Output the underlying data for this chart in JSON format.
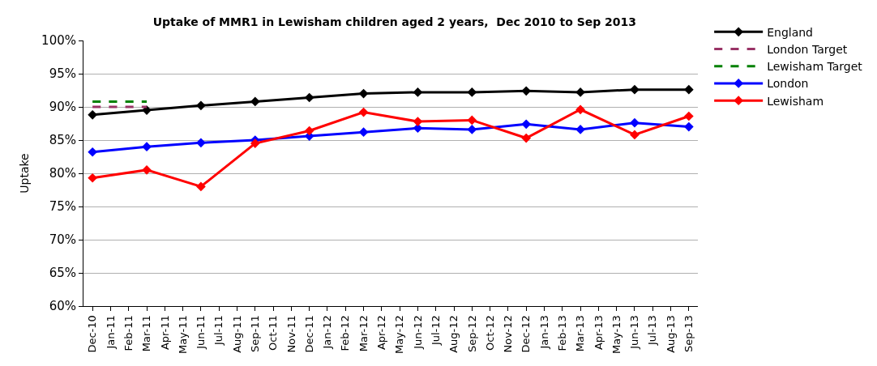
{
  "chart_data": {
    "type": "line",
    "title": "Uptake of MMR1 in Lewisham children aged 2 years,  Dec 2010 to Sep 2013",
    "ylabel": "Uptake",
    "categories": [
      "Dec-10",
      "Jan-11",
      "Feb-11",
      "Mar-11",
      "Apr-11",
      "May-11",
      "Jun-11",
      "Jul-11",
      "Aug-11",
      "Sep-11",
      "Oct-11",
      "Nov-11",
      "Dec-11",
      "Jan-12",
      "Feb-12",
      "Mar-12",
      "Apr-12",
      "May-12",
      "Jun-12",
      "Jul-12",
      "Aug-12",
      "Sep-12",
      "Oct-12",
      "Nov-12",
      "Dec-12",
      "Jan-13",
      "Feb-13",
      "Mar-13",
      "Apr-13",
      "May-13",
      "Jun-13",
      "Jul-13",
      "Aug-13",
      "Sep-13"
    ],
    "series": [
      {
        "name": "England",
        "color": "#000000",
        "marker": "diamond",
        "line_style": "solid",
        "values": [
          88.8,
          null,
          null,
          89.5,
          null,
          null,
          90.2,
          null,
          null,
          90.8,
          null,
          null,
          91.4,
          null,
          null,
          92.0,
          null,
          null,
          92.2,
          null,
          null,
          92.2,
          null,
          null,
          92.4,
          null,
          null,
          92.2,
          null,
          null,
          92.6,
          null,
          null,
          92.6
        ]
      },
      {
        "name": "London Target",
        "color": "#993366",
        "marker": "none",
        "line_style": "dashed",
        "values": [
          90,
          90,
          90,
          90,
          null,
          null,
          null,
          null,
          null,
          null,
          null,
          null,
          null,
          null,
          null,
          null,
          null,
          null,
          null,
          null,
          null,
          null,
          null,
          null,
          null,
          null,
          null,
          null,
          null,
          null,
          null,
          null,
          null,
          null
        ]
      },
      {
        "name": "Lewisham Target",
        "color": "#008000",
        "marker": "none",
        "line_style": "dashed",
        "values": [
          90.8,
          90.8,
          90.8,
          90.8,
          null,
          null,
          null,
          null,
          null,
          null,
          null,
          null,
          null,
          null,
          null,
          null,
          null,
          null,
          null,
          null,
          null,
          null,
          null,
          null,
          null,
          null,
          null,
          null,
          null,
          null,
          null,
          null,
          null,
          null
        ]
      },
      {
        "name": "London",
        "color": "#0000ff",
        "marker": "diamond",
        "line_style": "solid",
        "values": [
          83.2,
          null,
          null,
          84.0,
          null,
          null,
          84.6,
          null,
          null,
          85.0,
          null,
          null,
          85.6,
          null,
          null,
          86.2,
          null,
          null,
          86.8,
          null,
          null,
          86.6,
          null,
          null,
          87.4,
          null,
          null,
          86.6,
          null,
          null,
          87.6,
          null,
          null,
          87.0
        ]
      },
      {
        "name": "Lewisham",
        "color": "#ff0000",
        "marker": "diamond",
        "line_style": "solid",
        "values": [
          79.3,
          null,
          null,
          80.5,
          null,
          null,
          78.0,
          null,
          null,
          84.5,
          null,
          null,
          86.4,
          null,
          null,
          89.2,
          null,
          null,
          87.8,
          null,
          null,
          88.0,
          null,
          null,
          85.3,
          null,
          null,
          89.6,
          null,
          null,
          85.8,
          null,
          null,
          88.6
        ]
      }
    ],
    "ylim": [
      60,
      100
    ],
    "yticks": [
      {
        "value": 60,
        "label": "60%"
      },
      {
        "value": 65,
        "label": "65%"
      },
      {
        "value": 70,
        "label": "70%"
      },
      {
        "value": 75,
        "label": "75%"
      },
      {
        "value": 80,
        "label": "80%"
      },
      {
        "value": 85,
        "label": "85%"
      },
      {
        "value": 90,
        "label": "90%"
      },
      {
        "value": 95,
        "label": "95%"
      },
      {
        "value": 100,
        "label": "100%"
      }
    ],
    "grid": "y",
    "legend": "right"
  }
}
